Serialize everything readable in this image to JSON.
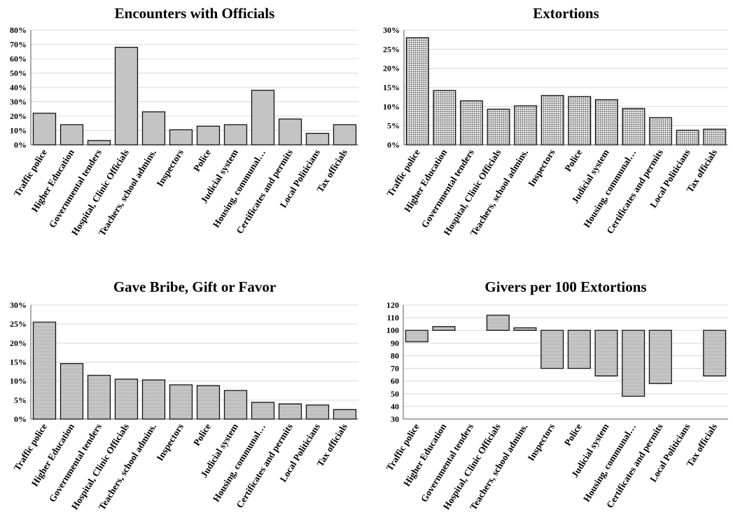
{
  "chart_data": [
    {
      "type": "bar",
      "title": "Encounters with Officials",
      "categories": [
        "Traffic police",
        "Higher Education",
        "Governmental tenders",
        "Hospital, Clinic Officials",
        "Teachers, school admins.",
        "Inspectors",
        "Police",
        "Judicial system",
        "Housing, communal…",
        "Certificates and permits",
        "Local Politicians",
        "Tax officials"
      ],
      "values": [
        22,
        14,
        3,
        68,
        23,
        10.5,
        13,
        14,
        38,
        18,
        8,
        14
      ],
      "ylim": [
        0,
        80
      ],
      "yticks": [
        "0%",
        "10%",
        "20%",
        "30%",
        "40%",
        "50%",
        "60%",
        "70%",
        "80%"
      ],
      "fill": "solid-gray",
      "grid": true
    },
    {
      "type": "bar",
      "title": "Extortions",
      "categories": [
        "Traffic police",
        "Higher Education",
        "Governmental tenders",
        "Hospital, Clinic Officials",
        "Teachers, school admins.",
        "Inspectors",
        "Police",
        "Judicial system",
        "Housing, communal…",
        "Certificates and permits",
        "Local Politicians",
        "Tax officials"
      ],
      "values": [
        28,
        14.2,
        11.5,
        9.3,
        10.2,
        12.9,
        12.6,
        11.8,
        9.5,
        7.1,
        3.8,
        4.1
      ],
      "ylim": [
        0,
        30
      ],
      "yticks": [
        "0%",
        "5%",
        "10%",
        "15%",
        "20%",
        "25%",
        "30%"
      ],
      "fill": "grid-pattern",
      "grid": true
    },
    {
      "type": "bar",
      "title": "Gave Bribe, Gift or Favor",
      "categories": [
        "Traffic police",
        "Higher Education",
        "Governmental tenders",
        "Hospital, Clinic Officials",
        "Teachers, school admins.",
        "Inspectors",
        "Police",
        "Judicial system",
        "Housing, communal…",
        "Certificates and permits",
        "Local Politicians",
        "Tax officials"
      ],
      "values": [
        25.5,
        14.6,
        11.5,
        10.5,
        10.3,
        9.0,
        8.8,
        7.5,
        4.4,
        4.0,
        3.7,
        2.5
      ],
      "ylim": [
        0,
        30
      ],
      "yticks": [
        "0%",
        "5%",
        "10%",
        "15%",
        "20%",
        "25%",
        "30%"
      ],
      "fill": "horizontal-lines",
      "grid": true
    },
    {
      "type": "bar",
      "title": "Givers per 100 Extortions",
      "categories": [
        "Traffic police",
        "Higher Education",
        "Governmental tenders",
        "Hospital, Clinic Officials",
        "Teachers, school admins.",
        "Inspectors",
        "Police",
        "Judicial system",
        "Housing, communal…",
        "Certificates and permits",
        "Local Politicians",
        "Tax officials"
      ],
      "values": [
        91,
        103,
        null,
        112,
        102,
        70,
        70,
        64,
        48,
        58,
        null,
        64
      ],
      "baseline": 100,
      "ylim": [
        30,
        120
      ],
      "yticks": [
        "30",
        "40",
        "50",
        "60",
        "70",
        "80",
        "90",
        "100",
        "110",
        "120"
      ],
      "fill": "horizontal-lines",
      "grid": true
    }
  ]
}
